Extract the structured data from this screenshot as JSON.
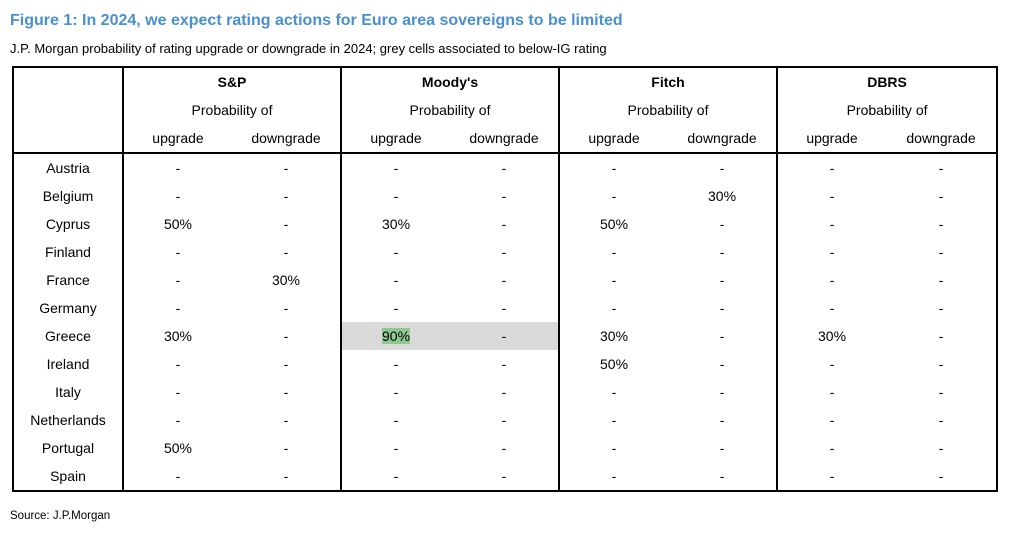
{
  "title": "Figure 1: In 2024, we expect rating actions for Euro area sovereigns to be limited",
  "subtitle": "J.P. Morgan probability of rating upgrade or downgrade in 2024; grey cells associated to below-IG rating",
  "agencies": [
    "S&P",
    "Moody's",
    "Fitch",
    "DBRS"
  ],
  "probability_label": "Probability of",
  "upgrade_label": "upgrade",
  "downgrade_label": "downgrade",
  "rows": [
    {
      "country": "Austria",
      "v": [
        "-",
        "-",
        "-",
        "-",
        "-",
        "-",
        "-",
        "-"
      ]
    },
    {
      "country": "Belgium",
      "v": [
        "-",
        "-",
        "-",
        "-",
        "-",
        "30%",
        "-",
        "-"
      ]
    },
    {
      "country": "Cyprus",
      "v": [
        "50%",
        "-",
        "30%",
        "-",
        "50%",
        "-",
        "-",
        "-"
      ]
    },
    {
      "country": "Finland",
      "v": [
        "-",
        "-",
        "-",
        "-",
        "-",
        "-",
        "-",
        "-"
      ]
    },
    {
      "country": "France",
      "v": [
        "-",
        "30%",
        "-",
        "-",
        "-",
        "-",
        "-",
        "-"
      ]
    },
    {
      "country": "Germany",
      "v": [
        "-",
        "-",
        "-",
        "-",
        "-",
        "-",
        "-",
        "-"
      ]
    },
    {
      "country": "Greece",
      "v": [
        "30%",
        "-",
        "90%",
        "-",
        "30%",
        "-",
        "30%",
        "-"
      ]
    },
    {
      "country": "Ireland",
      "v": [
        "-",
        "-",
        "-",
        "-",
        "50%",
        "-",
        "-",
        "-"
      ]
    },
    {
      "country": "Italy",
      "v": [
        "-",
        "-",
        "-",
        "-",
        "-",
        "-",
        "-",
        "-"
      ]
    },
    {
      "country": "Netherlands",
      "v": [
        "-",
        "-",
        "-",
        "-",
        "-",
        "-",
        "-",
        "-"
      ]
    },
    {
      "country": "Portugal",
      "v": [
        "50%",
        "-",
        "-",
        "-",
        "-",
        "-",
        "-",
        "-"
      ]
    },
    {
      "country": "Spain",
      "v": [
        "-",
        "-",
        "-",
        "-",
        "-",
        "-",
        "-",
        "-"
      ]
    }
  ],
  "source": "Source: J.P.Morgan"
}
